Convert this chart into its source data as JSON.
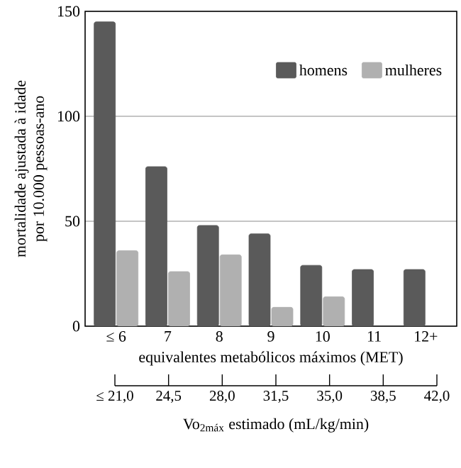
{
  "chart_data": {
    "type": "bar",
    "ylabel": "mortalidade ajustada à idade\npor 10.000 pessoas-ano",
    "xlabel": "equivalentes metabólicos máximos (MET)",
    "categories": [
      "≤ 6",
      "7",
      "8",
      "9",
      "10",
      "11",
      "12+"
    ],
    "series": [
      {
        "name": "homens",
        "color": "#5a5a5a",
        "values": [
          145,
          76,
          48,
          44,
          29,
          27,
          27
        ]
      },
      {
        "name": "mulheres",
        "color": "#b0b0b0",
        "values": [
          36,
          26,
          34,
          9,
          14,
          null,
          null
        ]
      }
    ],
    "ylim": [
      0,
      150
    ],
    "yticks": [
      0,
      50,
      100,
      150
    ],
    "grid": "y",
    "legend": "top right",
    "x2lim": [
      21,
      42
    ],
    "x2ticks": [
      {
        "value": 21,
        "label": "≤ 21,0"
      },
      {
        "value": 24.5,
        "label": "24,5"
      },
      {
        "value": 28,
        "label": "28,0"
      },
      {
        "value": 31.5,
        "label": "31,5"
      },
      {
        "value": 35,
        "label": "35,0"
      },
      {
        "value": 38.5,
        "label": "38,5"
      },
      {
        "value": 42,
        "label": "42,0"
      }
    ],
    "x2label": "Vo$_{2máx}$ estimado (mL/kg/min)"
  }
}
